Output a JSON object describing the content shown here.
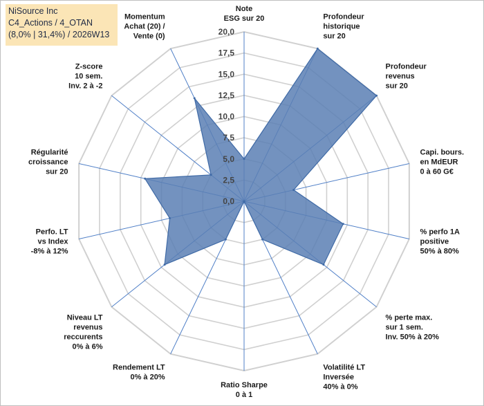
{
  "header": {
    "line1": "NiSource Inc",
    "line2": "C4_Actions / 4_OTAN",
    "line3": "(8,0% | 31,4%) / 2026W13"
  },
  "chart_data": {
    "type": "radar",
    "range": [
      0,
      20
    ],
    "ticks": [
      "0,0",
      "2,5",
      "5,0",
      "7,5",
      "10,0",
      "12,5",
      "15,0",
      "17,5",
      "20,0"
    ],
    "axes": [
      {
        "label": [
          "Note",
          "ESG sur 20"
        ],
        "value": 5.0
      },
      {
        "label": [
          "Profondeur",
          "historique",
          "sur 20"
        ],
        "value": 20.0
      },
      {
        "label": [
          "Profondeur",
          "revenus",
          "sur 20"
        ],
        "value": 20.0
      },
      {
        "label": [
          "Capi. bours.",
          "en MdEUR",
          "0 à 60 G€"
        ],
        "value": 6.0
      },
      {
        "label": [
          "% perfo 1A",
          "positive",
          "50% à 80%"
        ],
        "value": 12.0
      },
      {
        "label": [
          "% perte max.",
          "sur 1 sem.",
          "Inv. 50% à 20%"
        ],
        "value": 12.0
      },
      {
        "label": [
          "Volatilité LT",
          "Inversée",
          "40% à 0%"
        ],
        "value": 5.0
      },
      {
        "label": [
          "Ratio Sharpe",
          "0 à 1"
        ],
        "value": 0.0
      },
      {
        "label": [
          "Rendement LT",
          "0% à 20%"
        ],
        "value": 5.0
      },
      {
        "label": [
          "Niveau LT",
          "revenus",
          "reccurents",
          "0% à 6%"
        ],
        "value": 12.0
      },
      {
        "label": [
          "Perfo. LT",
          "vs Index",
          "-8% à 12%"
        ],
        "value": 9.0
      },
      {
        "label": [
          "Régularité",
          "croissance",
          "sur 20"
        ],
        "value": 12.0
      },
      {
        "label": [
          "Z-score",
          "10 sem.",
          "Inv. 2 à -2"
        ],
        "value": 5.0
      },
      {
        "label": [
          "Momentum",
          "Achat (20) /",
          "Vente (0)"
        ],
        "value": 13.5
      }
    ],
    "colors": {
      "fill": "#5b7fb4",
      "stroke": "#3f6aa6",
      "grid": "#d0d0d0",
      "spoke": "#4f7fc7"
    }
  }
}
